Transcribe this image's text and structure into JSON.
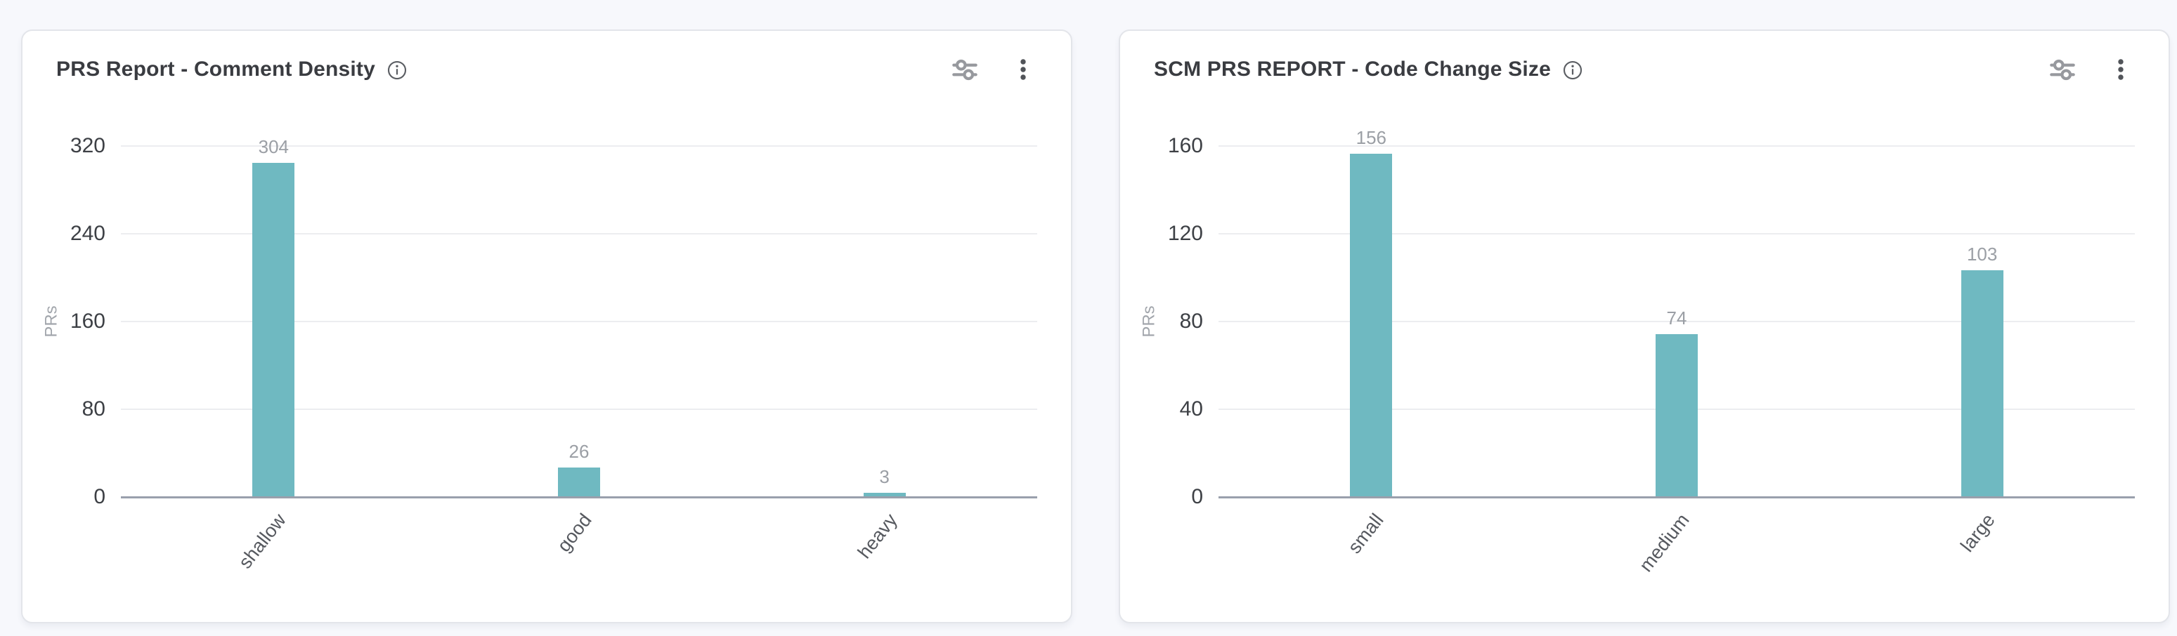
{
  "page": {
    "background": "#f7f8fc"
  },
  "cards": [
    {
      "title": "PRS Report - Comment Density",
      "icons": [
        "info-icon",
        "filter-sliders-icon",
        "kebab-menu-icon"
      ]
    },
    {
      "title": "SCM PRS REPORT - Code Change Size",
      "icons": [
        "info-icon",
        "filter-sliders-icon",
        "kebab-menu-icon"
      ]
    }
  ],
  "chart_data": [
    {
      "type": "bar",
      "title": "PRS Report - Comment Density",
      "categories": [
        "shallow",
        "good",
        "heavy"
      ],
      "values": [
        304,
        26,
        3
      ],
      "xlabel": "",
      "ylabel": "PRs",
      "yticks": [
        0,
        80,
        160,
        240,
        320
      ],
      "ylim": [
        0,
        320
      ],
      "grid": true,
      "legend": false,
      "value_labels": true,
      "bar_color": "#6fb9c1",
      "xlabel_rotation_deg": -52
    },
    {
      "type": "bar",
      "title": "SCM PRS REPORT - Code Change Size",
      "categories": [
        "small",
        "medium",
        "large"
      ],
      "values": [
        156,
        74,
        103
      ],
      "xlabel": "",
      "ylabel": "PRs",
      "yticks": [
        0,
        40,
        80,
        120,
        160
      ],
      "ylim": [
        0,
        160
      ],
      "grid": true,
      "legend": false,
      "value_labels": true,
      "bar_color": "#6fb9c1",
      "xlabel_rotation_deg": -52
    }
  ]
}
